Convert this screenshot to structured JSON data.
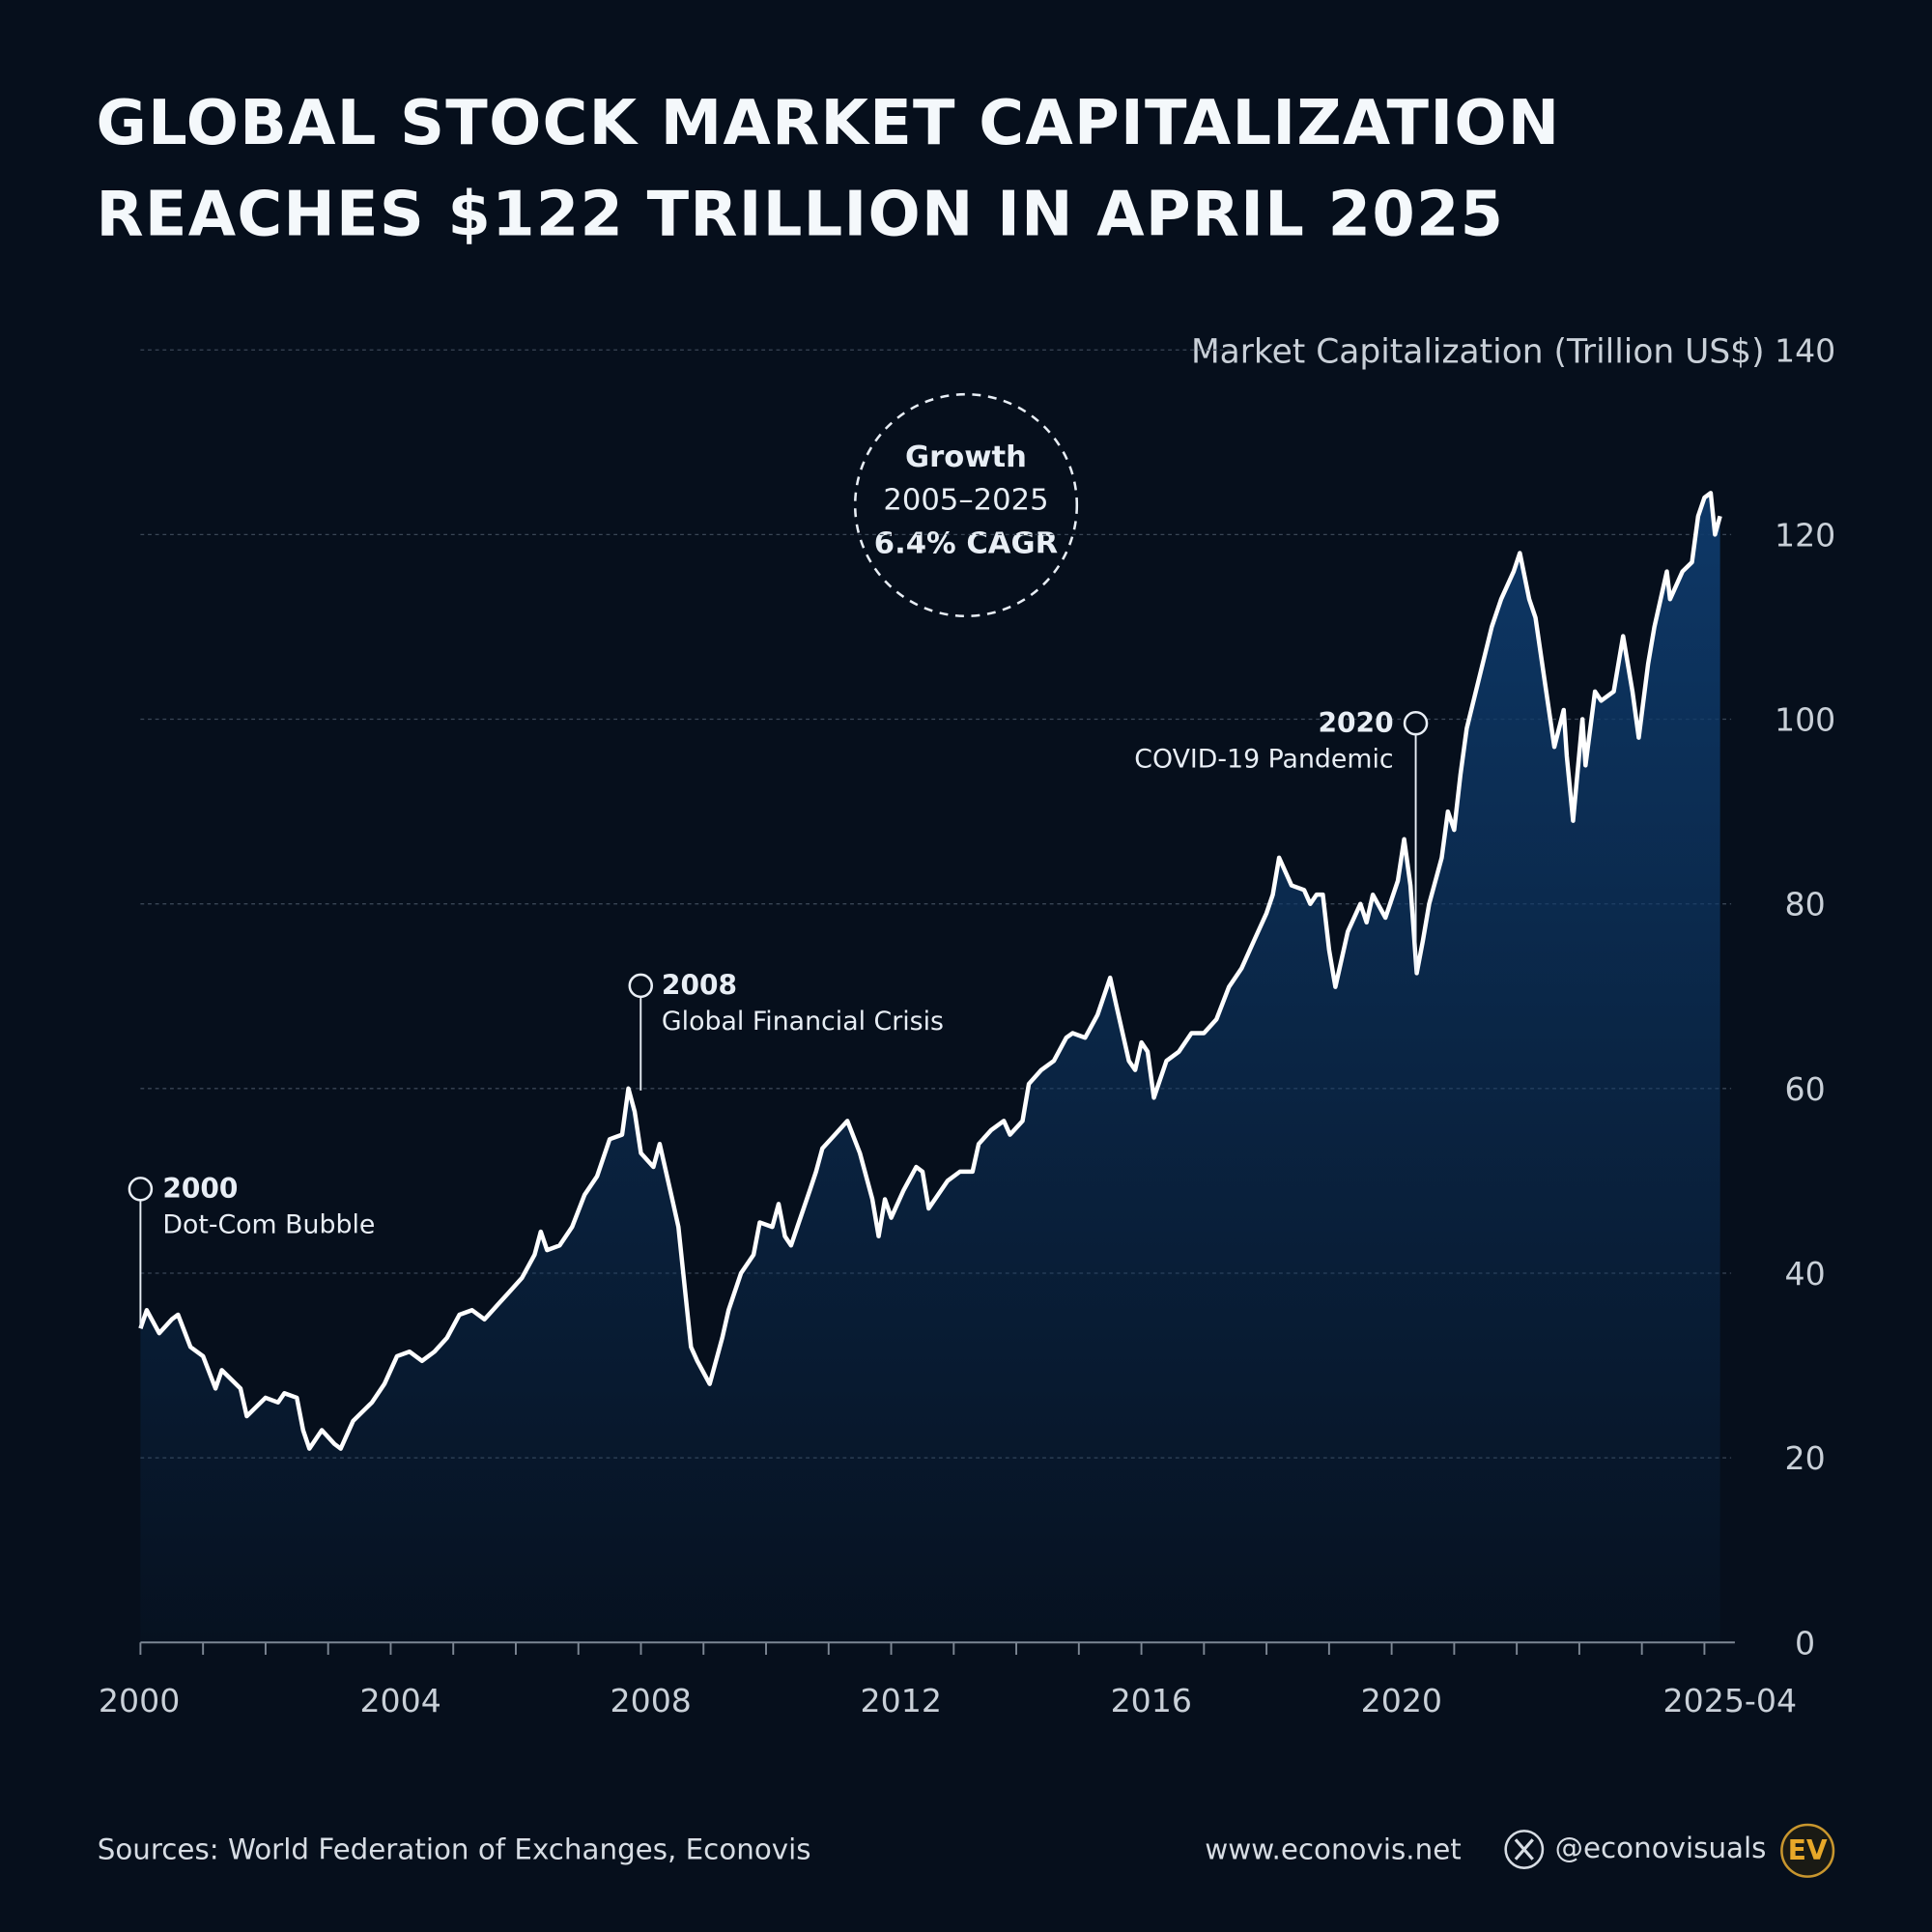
{
  "title": [
    "GLOBAL STOCK MARKET CAPITALIZATION",
    "REACHES $122 TRILLION IN APRIL 2025"
  ],
  "chart_data": {
    "type": "area",
    "y_axis_label": "Market Capitalization (Trillion US$)",
    "x": [
      2000.0,
      2000.1,
      2000.3,
      2000.5,
      2000.6,
      2000.8,
      2001.0,
      2001.2,
      2001.3,
      2001.6,
      2001.7,
      2002.0,
      2002.2,
      2002.3,
      2002.5,
      2002.6,
      2002.7,
      2002.9,
      2003.1,
      2003.2,
      2003.4,
      2003.7,
      2003.9,
      2004.1,
      2004.3,
      2004.5,
      2004.7,
      2004.9,
      2005.1,
      2005.3,
      2005.5,
      2005.7,
      2005.9,
      2006.1,
      2006.3,
      2006.4,
      2006.5,
      2006.7,
      2006.9,
      2007.1,
      2007.3,
      2007.5,
      2007.7,
      2007.8,
      2007.9,
      2008.0,
      2008.2,
      2008.3,
      2008.5,
      2008.6,
      2008.8,
      2008.9,
      2009.1,
      2009.3,
      2009.4,
      2009.6,
      2009.8,
      2009.9,
      2010.1,
      2010.2,
      2010.3,
      2010.4,
      2010.5,
      2010.7,
      2010.8,
      2010.9,
      2011.1,
      2011.3,
      2011.5,
      2011.7,
      2011.8,
      2011.9,
      2012.0,
      2012.2,
      2012.4,
      2012.5,
      2012.6,
      2012.8,
      2012.9,
      2013.1,
      2013.3,
      2013.4,
      2013.6,
      2013.8,
      2013.9,
      2014.1,
      2014.2,
      2014.4,
      2014.6,
      2014.8,
      2014.9,
      2015.1,
      2015.3,
      2015.5,
      2015.6,
      2015.8,
      2015.9,
      2016.0,
      2016.1,
      2016.2,
      2016.4,
      2016.6,
      2016.8,
      2017.0,
      2017.2,
      2017.4,
      2017.6,
      2017.8,
      2018.0,
      2018.1,
      2018.2,
      2018.4,
      2018.6,
      2018.7,
      2018.8,
      2018.9,
      2019.0,
      2019.1,
      2019.3,
      2019.5,
      2019.6,
      2019.7,
      2019.9,
      2020.1,
      2020.2,
      2020.3,
      2020.4,
      2020.5,
      2020.6,
      2020.8,
      2020.9,
      2021.0,
      2021.1,
      2021.2,
      2021.6,
      2021.75,
      2021.95,
      2022.05,
      2022.2,
      2022.3,
      2022.45,
      2022.6,
      2022.75,
      2022.8,
      2022.9,
      2023.05,
      2023.1,
      2023.25,
      2023.35,
      2023.55,
      2023.7,
      2023.85,
      2023.95,
      2024.1,
      2024.2,
      2024.4,
      2024.45,
      2024.65,
      2024.8,
      2024.9,
      2025.0,
      2025.1,
      2025.17,
      2025.25
    ],
    "values": [
      34,
      36,
      33.5,
      35,
      35.5,
      32,
      31,
      27.5,
      29.5,
      27.5,
      24.5,
      26.5,
      26,
      27,
      26.5,
      23,
      21,
      23,
      21.5,
      21,
      24,
      26,
      28,
      31,
      31.5,
      30.5,
      31.5,
      33,
      35.5,
      36,
      35,
      36.5,
      38,
      39.5,
      42,
      44.5,
      42.5,
      43,
      45,
      48.5,
      50.5,
      54.5,
      55,
      60,
      57.5,
      53,
      51.5,
      54,
      48,
      45,
      32,
      30.5,
      28,
      33,
      36,
      40,
      42,
      45.5,
      45,
      47.5,
      44,
      43,
      45,
      49,
      51,
      53.5,
      55,
      56.5,
      53,
      48,
      44,
      48,
      46,
      49,
      51.5,
      51,
      47,
      49,
      50,
      51,
      51,
      54,
      55.5,
      56.5,
      55,
      56.5,
      60.5,
      62,
      63,
      65.5,
      66,
      65.5,
      68,
      72,
      69,
      63,
      62,
      65,
      64,
      59,
      63,
      64,
      66,
      66,
      67.5,
      71,
      73,
      76,
      79,
      81,
      85,
      82,
      81.5,
      80,
      81,
      81,
      75,
      71,
      77,
      80,
      78,
      81,
      78.5,
      82.5,
      87,
      82,
      72.5,
      76,
      80,
      85,
      90,
      88,
      94,
      99,
      110,
      113,
      116,
      118,
      113,
      111,
      104,
      97,
      101,
      96,
      89,
      100,
      95,
      103,
      102,
      103,
      109,
      103,
      98,
      106,
      110,
      116,
      113,
      116,
      117,
      122,
      124,
      124.5,
      120,
      122
    ],
    "color": "#ffffff",
    "fill_color": "#0e3a6b",
    "xlim": [
      2000,
      2025.25
    ],
    "xticks": [
      2000,
      2004,
      2008,
      2012,
      2016,
      2020,
      {
        "value": 2025.25,
        "label": "2025-04"
      }
    ],
    "x_minor_ticks": [
      2000,
      2001,
      2002,
      2003,
      2004,
      2005,
      2006,
      2007,
      2008,
      2009,
      2010,
      2011,
      2012,
      2013,
      2014,
      2015,
      2016,
      2017,
      2018,
      2019,
      2020,
      2021,
      2022,
      2023,
      2024,
      2025
    ],
    "ylim": [
      0,
      140
    ],
    "yticks": [
      0,
      20,
      40,
      60,
      80,
      100,
      120,
      140
    ],
    "grid": true,
    "annotations": [
      {
        "title": "2000",
        "text": "Dot-Com Bubble"
      },
      {
        "title": "2008",
        "text": "Global Financial Crisis"
      },
      {
        "title": "2020",
        "text": "COVID-19 Pandemic"
      }
    ],
    "callout": [
      "Growth",
      "2005–2025",
      "6.4% CAGR"
    ]
  },
  "footer": {
    "source": "Sources: World Federation of Exchanges, Econovis",
    "website": "www.econovis.net",
    "handle": "@econovisuals",
    "logo": "EV"
  }
}
